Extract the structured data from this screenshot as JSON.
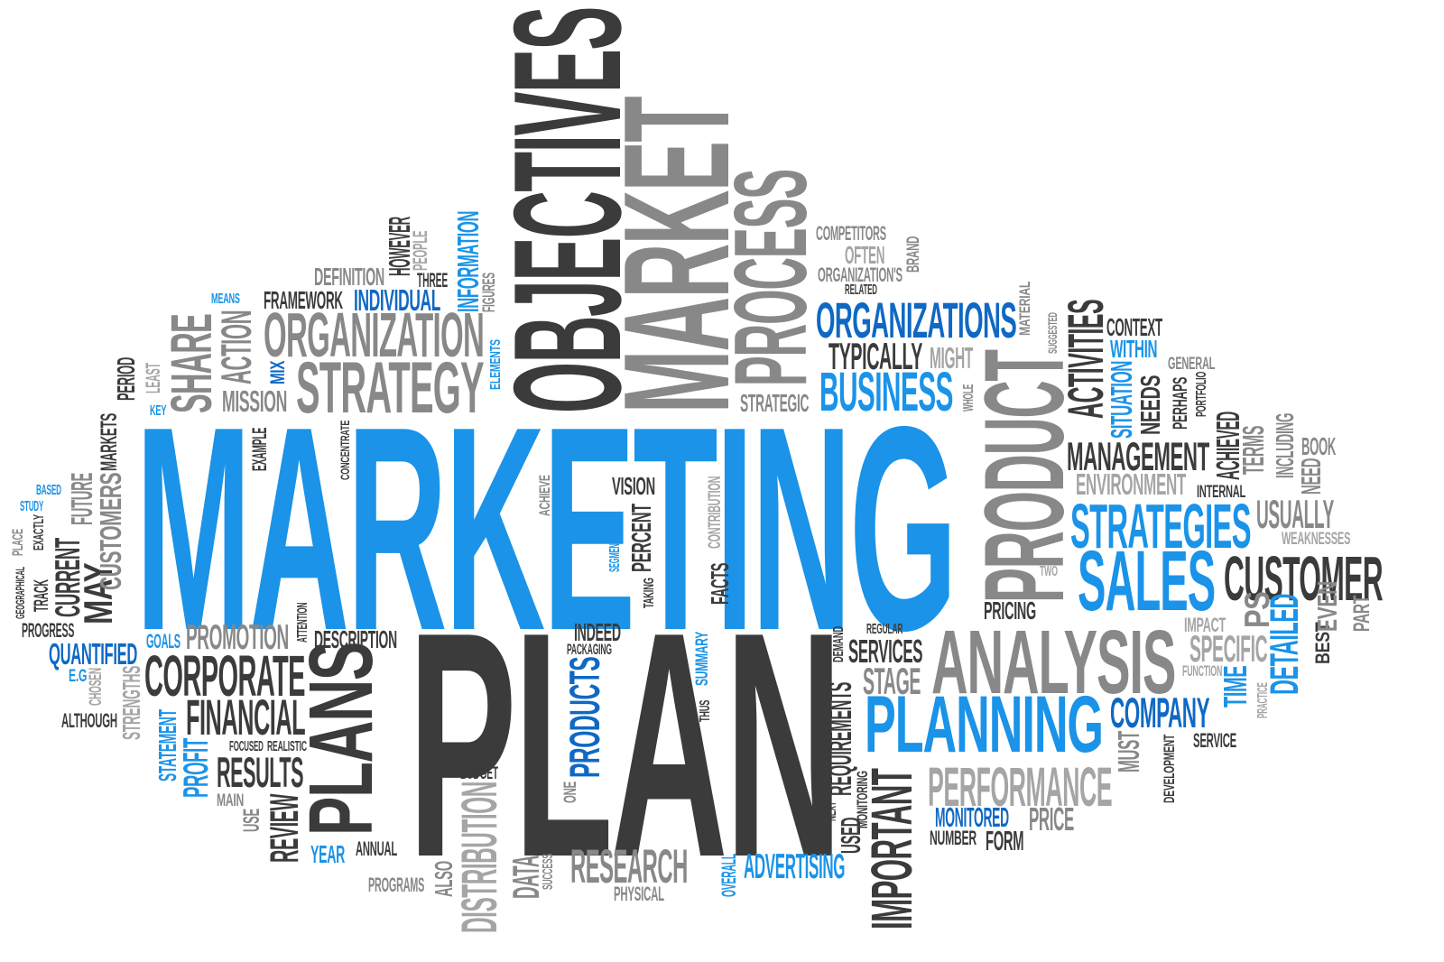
{
  "colors": {
    "blue": "#1a93e8",
    "dark_blue": "#0f68c4",
    "dark": "#3b3b3b",
    "grey": "#888888",
    "light_grey": "#a5a5a5",
    "background": "#ffffff"
  },
  "words": {
    "marketing": "MARKETING",
    "plan": "PLAN",
    "objectives": "OBJECTIVES",
    "market": "MARKET",
    "process": "PROCESS",
    "product": "PRODUCT",
    "analysis": "ANALYSIS",
    "planning": "PLANNING",
    "strategy": "STRATEGY",
    "organization": "ORGANIZATION",
    "organizations": "ORGANIZATIONS",
    "business": "BUSINESS",
    "typically": "TYPICALLY",
    "might": "MIGHT",
    "strategic": "STRATEGIC",
    "competitors": "COMPETITORS",
    "often": "OFTEN",
    "organizations_poss": "ORGANIZATION'S",
    "related": "RELATED",
    "brand": "BRAND",
    "material": "MATERIAL",
    "suggested": "SUGGESTED",
    "whole": "WHOLE",
    "activities": "ACTIVITIES",
    "context": "CONTEXT",
    "within": "WITHIN",
    "general": "GENERAL",
    "situation": "SITUATION",
    "needs": "NEEDS",
    "perhaps": "PERHAPS",
    "portfolio": "PORTFOLIO",
    "management": "MANAGEMENT",
    "environment": "ENVIRONMENT",
    "achieved": "ACHIEVED",
    "terms": "TERMS",
    "including": "INCLUDING",
    "book": "BOOK",
    "need": "NEED",
    "internal": "INTERNAL",
    "strategies": "STRATEGIES",
    "usually": "USUALLY",
    "weaknesses": "WEAKNESSES",
    "sales": "SALES",
    "customer": "CUSTOMER",
    "two": "TWO",
    "pricing": "PRICING",
    "impact": "IMPACT",
    "ps": "PS",
    "detailed": "DETAILED",
    "best": "BEST",
    "even": "EVEN",
    "part": "PART",
    "specific": "SPECIFIC",
    "function": "FUNCTION",
    "time": "TIME",
    "practice": "PRACTICE",
    "company": "COMPANY",
    "must": "MUST",
    "development": "DEVELOPMENT",
    "service": "SERVICE",
    "performance": "PERFORMANCE",
    "monitored": "MONITORED",
    "price": "PRICE",
    "number": "NUMBER",
    "form": "FORM",
    "important": "IMPORTANT",
    "requirements": "REQUIREMENTS",
    "monitoring": "MONITORING",
    "used": "USED",
    "next": "NEXT",
    "regular": "REGULAR",
    "demand": "DEMAND",
    "services": "SERVICES",
    "stage": "STAGE",
    "thus": "THUS",
    "summary": "SUMMARY",
    "indeed": "INDEED",
    "packaging": "PACKAGING",
    "products": "PRODUCTS",
    "one": "ONE",
    "data": "DATA",
    "success": "SUCCESS",
    "research": "RESEARCH",
    "physical": "PHYSICAL",
    "overall": "OVERALL",
    "advertising": "ADVERTISING",
    "vision": "VISION",
    "percent": "PERCENT",
    "contribution": "CONTRIBUTION",
    "facts": "FACTS",
    "taking": "TAKING",
    "segment": "SEGMENT",
    "achieve": "ACHIEVE",
    "budget": "BUDGET",
    "distribution": "DISTRIBUTION",
    "also": "ALSO",
    "programs": "PROGRAMS",
    "annual": "ANNUAL",
    "year": "YEAR",
    "plans": "PLANS",
    "review": "REVIEW",
    "use": "USE",
    "main": "MAIN",
    "results": "RESULTS",
    "focused": "FOCUSED",
    "realistic": "REALISTIC",
    "financial": "FINANCIAL",
    "corporate": "CORPORATE",
    "promotion": "PROMOTION",
    "description": "DESCRIPTION",
    "attention": "ATTENTION",
    "goals": "GOALS",
    "quantified": "QUANTIFIED",
    "eg": "E.G",
    "chosen": "CHOSEN",
    "strengths": "STRENGTHS",
    "although": "ALTHOUGH",
    "statement": "STATEMENT",
    "profit": "PROFIT",
    "progress": "PROGRESS",
    "geographical": "GEOGRAPHICAL",
    "place": "PLACE",
    "track": "TRACK",
    "study": "STUDY",
    "based": "BASED",
    "exactly": "EXACTLY",
    "current": "CURRENT",
    "may": "MAY",
    "future": "FUTURE",
    "customers": "CUSTOMERS",
    "markets": "MARKETS",
    "key": "KEY",
    "period": "PERIOD",
    "least": "LEAST",
    "share": "SHARE",
    "action": "ACTION",
    "means": "MEANS",
    "mission": "MISSION",
    "mix": "MIX",
    "framework": "FRAMEWORK",
    "individual": "INDIVIDUAL",
    "definition": "DEFINITION",
    "however": "HOWEVER",
    "people": "PEOPLE",
    "three": "THREE",
    "information": "INFORMATION",
    "figures": "FIGURES",
    "elements": "ELEMENTS",
    "example": "EXAMPLE",
    "concentrate": "CONCENTRATE"
  }
}
